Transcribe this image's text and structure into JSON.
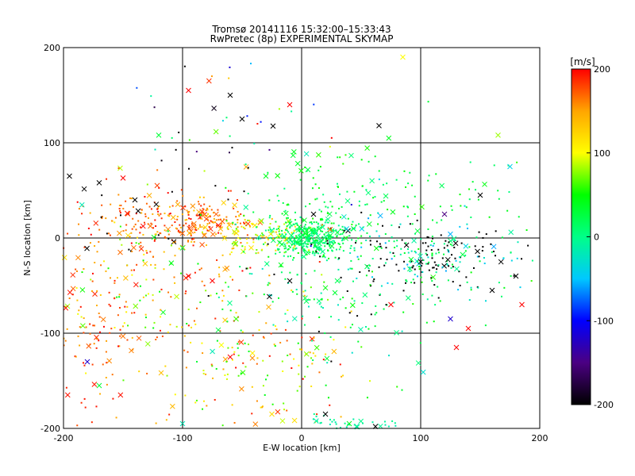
{
  "chart_data": {
    "type": "scatter",
    "title": "Tromsø 20141116 15:32:00–15:33:43",
    "subtitle": "RwPretec (8p) EXPERIMENTAL SKYMAP",
    "xlabel": "E-W location [km]",
    "ylabel": "N-S location [km]",
    "xlim": [
      -200,
      200
    ],
    "ylim": [
      -200,
      200
    ],
    "xticks": [
      -200,
      -100,
      0,
      100,
      200
    ],
    "yticks": [
      -200,
      -100,
      0,
      100,
      200
    ],
    "grid": true,
    "colorbar": {
      "label": "[m/s]",
      "min": -200,
      "max": 200,
      "ticks": [
        -200,
        -100,
        0,
        100,
        200
      ],
      "colors": [
        "#000000",
        "#4b0082",
        "#0000ff",
        "#00c8ff",
        "#00ff88",
        "#00ff00",
        "#ffff00",
        "#ffa500",
        "#ff0000"
      ]
    },
    "markers": {
      "small": "dot",
      "large": "cross"
    },
    "points": [
      {
        "x": 5,
        "y": 0,
        "v": 20,
        "m": "cross"
      },
      {
        "x": -80,
        "y": 20,
        "v": 180,
        "m": "cross"
      },
      {
        "x": -140,
        "y": 40,
        "v": -200,
        "m": "cross"
      },
      {
        "x": 100,
        "y": -25,
        "v": -200,
        "m": "cross"
      },
      {
        "x": 55,
        "y": -30,
        "v": 20,
        "m": "cross"
      },
      {
        "x": 85,
        "y": 190,
        "v": 100,
        "m": "cross"
      },
      {
        "x": -95,
        "y": 155,
        "v": 200,
        "m": "cross"
      },
      {
        "x": -60,
        "y": 150,
        "v": -200,
        "m": "cross"
      },
      {
        "x": -10,
        "y": 140,
        "v": 200,
        "m": "cross"
      },
      {
        "x": 65,
        "y": 118,
        "v": -200,
        "m": "cross"
      },
      {
        "x": -120,
        "y": 108,
        "v": 30,
        "m": "cross"
      },
      {
        "x": 165,
        "y": 108,
        "v": 80,
        "m": "cross"
      },
      {
        "x": 175,
        "y": 75,
        "v": -40,
        "m": "cross"
      },
      {
        "x": -195,
        "y": 65,
        "v": -200,
        "m": "cross"
      },
      {
        "x": -170,
        "y": 58,
        "v": -200,
        "m": "cross"
      },
      {
        "x": -150,
        "y": 63,
        "v": 200,
        "m": "cross"
      },
      {
        "x": 150,
        "y": 45,
        "v": -200,
        "m": "cross"
      },
      {
        "x": 120,
        "y": 25,
        "v": -150,
        "m": "cross"
      },
      {
        "x": 185,
        "y": -70,
        "v": 200,
        "m": "cross"
      },
      {
        "x": 140,
        "y": -95,
        "v": 200,
        "m": "cross"
      },
      {
        "x": 125,
        "y": -85,
        "v": -120,
        "m": "cross"
      },
      {
        "x": 130,
        "y": -115,
        "v": 200,
        "m": "cross"
      },
      {
        "x": -180,
        "y": -130,
        "v": -120,
        "m": "cross"
      },
      {
        "x": -170,
        "y": -155,
        "v": 30,
        "m": "cross"
      },
      {
        "x": -60,
        "y": -125,
        "v": 200,
        "m": "cross"
      },
      {
        "x": -95,
        "y": -40,
        "v": 200,
        "m": "cross"
      },
      {
        "x": -75,
        "y": -45,
        "v": 200,
        "m": "cross"
      },
      {
        "x": 20,
        "y": -185,
        "v": -200,
        "m": "cross"
      },
      {
        "x": 40,
        "y": -195,
        "v": 40,
        "m": "cross"
      },
      {
        "x": -25,
        "y": -185,
        "v": 120,
        "m": "cross"
      },
      {
        "x": -55,
        "y": -85,
        "v": 60,
        "m": "cross"
      },
      {
        "x": -30,
        "y": 65,
        "v": 40,
        "m": "cross"
      },
      {
        "x": -50,
        "y": 125,
        "v": -200,
        "m": "cross"
      },
      {
        "x": -45,
        "y": 15,
        "v": 180,
        "m": "cross"
      },
      {
        "x": 30,
        "y": -45,
        "v": 20,
        "m": "cross"
      },
      {
        "x": 75,
        "y": -70,
        "v": 200,
        "m": "cross"
      },
      {
        "x": 160,
        "y": -55,
        "v": -200,
        "m": "cross"
      },
      {
        "x": 180,
        "y": -40,
        "v": -200,
        "m": "cross"
      },
      {
        "x": -100,
        "y": -195,
        "v": -20,
        "m": "cross"
      },
      {
        "x": 62,
        "y": -198,
        "v": -200,
        "m": "cross"
      },
      {
        "x": -10,
        "y": -45,
        "v": -200,
        "m": "cross"
      },
      {
        "x": 10,
        "y": 25,
        "v": -200,
        "m": "cross"
      }
    ],
    "clusters": [
      {
        "cx": 8,
        "cy": 0,
        "sx": 18,
        "sy": 10,
        "n": 380,
        "vmin": -10,
        "vmax": 40,
        "black": 0.0
      },
      {
        "cx": -80,
        "cy": 17,
        "sx": 22,
        "sy": 12,
        "n": 170,
        "vmin": 120,
        "vmax": 200,
        "black": 0.0
      },
      {
        "cx": -140,
        "cy": 18,
        "sx": 30,
        "sy": 18,
        "n": 130,
        "vmin": 140,
        "vmax": 200,
        "black": 0.15
      },
      {
        "cx": -35,
        "cy": 2,
        "sx": 18,
        "sy": 8,
        "n": 80,
        "vmin": 60,
        "vmax": 140,
        "black": 0.0
      },
      {
        "cx": 105,
        "cy": -20,
        "sx": 40,
        "sy": 18,
        "n": 230,
        "vmin": -60,
        "vmax": 40,
        "black": 0.45
      },
      {
        "cx": 40,
        "cy": 35,
        "sx": 45,
        "sy": 30,
        "n": 140,
        "vmin": 0,
        "vmax": 60,
        "black": 0.0
      },
      {
        "cx": -130,
        "cy": -50,
        "sx": 40,
        "sy": 35,
        "n": 150,
        "vmin": 40,
        "vmax": 200,
        "black": 0.0
      },
      {
        "cx": -40,
        "cy": -130,
        "sx": 45,
        "sy": 45,
        "n": 190,
        "vmin": 30,
        "vmax": 200,
        "black": 0.0
      },
      {
        "cx": -170,
        "cy": -100,
        "sx": 25,
        "sy": 60,
        "n": 110,
        "vmin": 140,
        "vmax": 200,
        "black": 0.0
      },
      {
        "cx": 20,
        "cy": -60,
        "sx": 60,
        "sy": 40,
        "n": 160,
        "vmin": -30,
        "vmax": 60,
        "black": 0.05
      },
      {
        "cx": 140,
        "cy": 10,
        "sx": 45,
        "sy": 45,
        "n": 60,
        "vmin": -40,
        "vmax": 60,
        "black": 0.0
      },
      {
        "cx": -60,
        "cy": 90,
        "sx": 60,
        "sy": 50,
        "n": 60,
        "vmin": -200,
        "vmax": 200,
        "black": 0.2
      },
      {
        "cx": 40,
        "cy": -195,
        "sx": 25,
        "sy": 4,
        "n": 40,
        "vmin": -20,
        "vmax": 0,
        "black": 0.0
      }
    ]
  }
}
